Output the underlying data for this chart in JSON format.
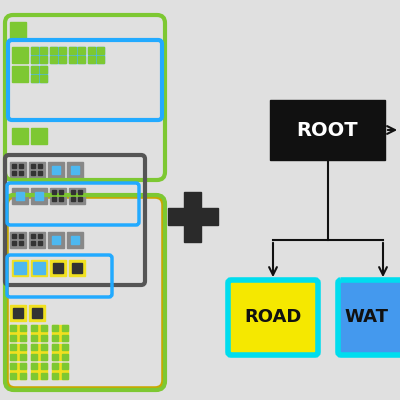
{
  "bg_color": "#e0e0e0",
  "c_grass": "#7dc832",
  "c_grass2": "#5aaa18",
  "c_blue": "#4db8f0",
  "c_blue2": "#2288cc",
  "c_gray": "#888888",
  "c_dark": "#333333",
  "c_yellow": "#f0e020",
  "c_black": "#111111",
  "border_green": "#7dc832",
  "border_blue": "#22aaff",
  "border_gray": "#555555",
  "border_yellow": "#c8a800",
  "border_cyan": "#00ddee",
  "root_color": "#111111",
  "root_text": "ROOT",
  "road_fill": "#f5e800",
  "road_text": "ROAD",
  "wat_fill": "#4499ee",
  "wat_text": "WAT",
  "plus_color": "#2a2a2a",
  "arrow_color": "#111111",
  "white": "#ffffff",
  "dark_text": "#111111"
}
